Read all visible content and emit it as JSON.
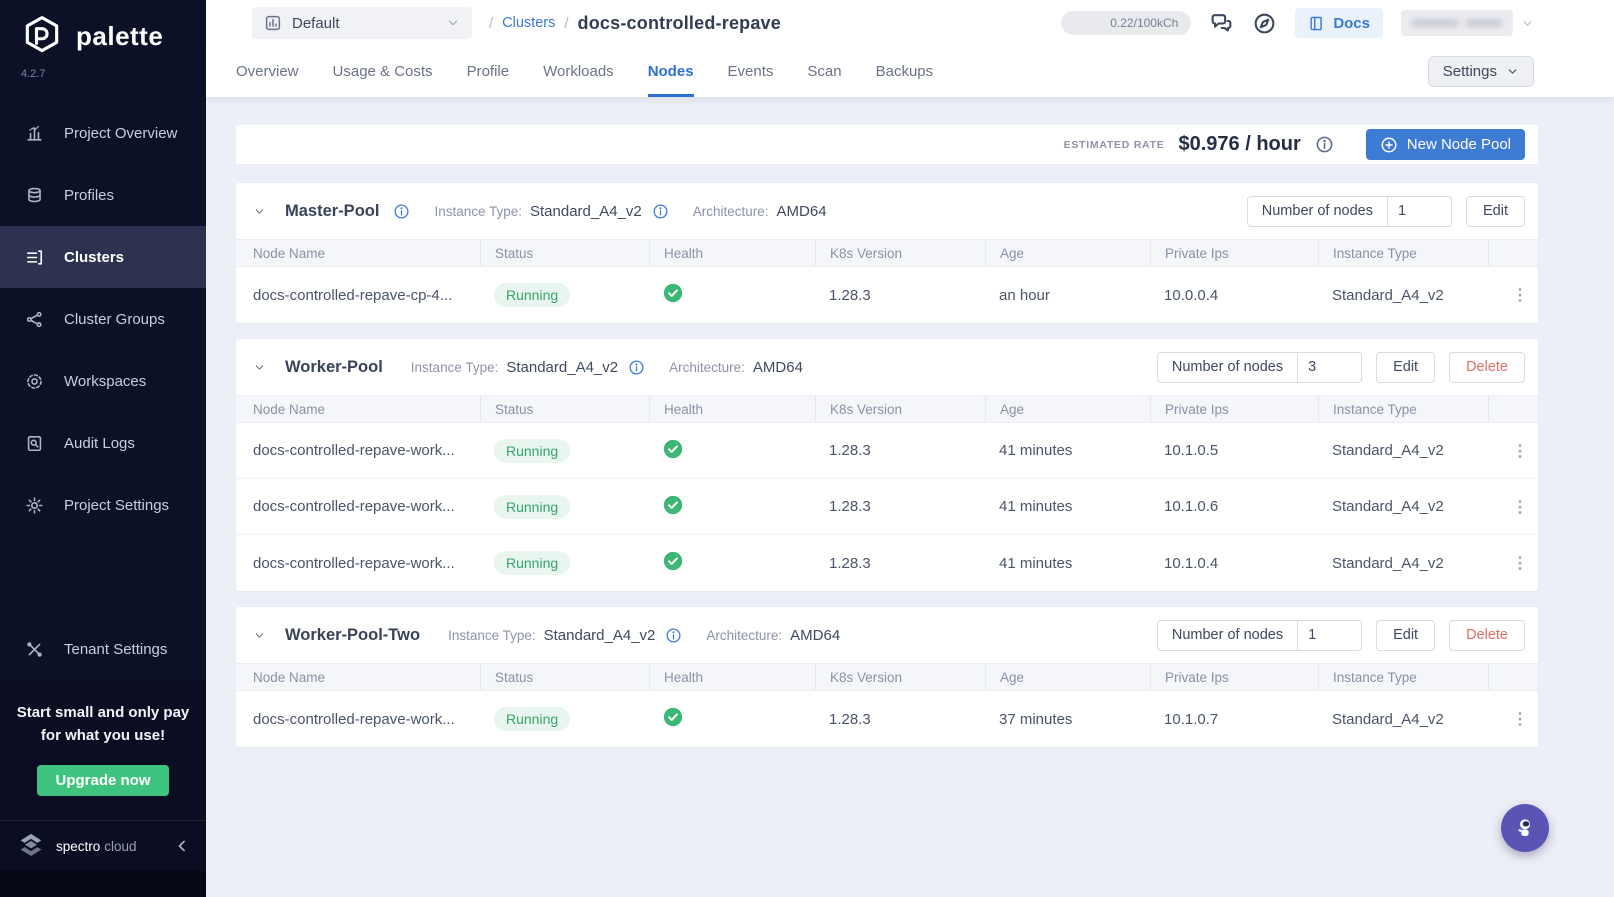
{
  "brand": {
    "name": "palette",
    "version": "4.2.7",
    "footer_name": "spectro",
    "footer_name_lite": "cloud"
  },
  "sidebar": {
    "items": [
      {
        "id": "project-overview",
        "label": "Project Overview",
        "icon": "bar-chart-icon",
        "active": false
      },
      {
        "id": "profiles",
        "label": "Profiles",
        "icon": "stack-icon",
        "active": false
      },
      {
        "id": "clusters",
        "label": "Clusters",
        "icon": "server-list-icon",
        "active": true
      },
      {
        "id": "cluster-groups",
        "label": "Cluster Groups",
        "icon": "network-icon",
        "active": false
      },
      {
        "id": "workspaces",
        "label": "Workspaces",
        "icon": "orbit-icon",
        "active": false
      },
      {
        "id": "audit-logs",
        "label": "Audit Logs",
        "icon": "audit-doc-icon",
        "active": false
      },
      {
        "id": "project-settings",
        "label": "Project Settings",
        "icon": "gear-icon",
        "active": false
      }
    ],
    "tenant": {
      "id": "tenant-settings",
      "label": "Tenant Settings",
      "icon": "tools-icon"
    },
    "promo": {
      "line1": "Start small and only pay",
      "line2": "for what you use!",
      "cta": "Upgrade now"
    }
  },
  "header": {
    "project_selector": "Default",
    "breadcrumb": {
      "separator": "/",
      "link": "Clusters",
      "current": "docs-controlled-repave"
    },
    "usage_badge": "0.22/100kCh",
    "docs_button": "Docs"
  },
  "tabs": {
    "items": [
      "Overview",
      "Usage & Costs",
      "Profile",
      "Workloads",
      "Nodes",
      "Events",
      "Scan",
      "Backups"
    ],
    "active": "Nodes",
    "settings_button": "Settings"
  },
  "rate_bar": {
    "label": "ESTIMATED RATE",
    "value": "$0.976 / hour",
    "new_node_pool_button": "New Node Pool"
  },
  "labels": {
    "instance_type": "Instance Type:",
    "architecture": "Architecture:",
    "number_of_nodes": "Number of nodes",
    "edit": "Edit",
    "delete": "Delete"
  },
  "table_columns": [
    "Node Name",
    "Status",
    "Health",
    "K8s Version",
    "Age",
    "Private Ips",
    "Instance Type"
  ],
  "pools": [
    {
      "name": "Master-Pool",
      "name_info": true,
      "instance_type": "Standard_A4_v2",
      "architecture": "AMD64",
      "nodes_count": "1",
      "can_delete": false,
      "rows": [
        {
          "name": "docs-controlled-repave-cp-4...",
          "status": "Running",
          "k8s_version": "1.28.3",
          "age": "an hour",
          "private_ip": "10.0.0.4",
          "instance_type": "Standard_A4_v2"
        }
      ]
    },
    {
      "name": "Worker-Pool",
      "name_info": false,
      "instance_type": "Standard_A4_v2",
      "architecture": "AMD64",
      "nodes_count": "3",
      "can_delete": true,
      "rows": [
        {
          "name": "docs-controlled-repave-work...",
          "status": "Running",
          "k8s_version": "1.28.3",
          "age": "41 minutes",
          "private_ip": "10.1.0.5",
          "instance_type": "Standard_A4_v2"
        },
        {
          "name": "docs-controlled-repave-work...",
          "status": "Running",
          "k8s_version": "1.28.3",
          "age": "41 minutes",
          "private_ip": "10.1.0.6",
          "instance_type": "Standard_A4_v2"
        },
        {
          "name": "docs-controlled-repave-work...",
          "status": "Running",
          "k8s_version": "1.28.3",
          "age": "41 minutes",
          "private_ip": "10.1.0.4",
          "instance_type": "Standard_A4_v2"
        }
      ]
    },
    {
      "name": "Worker-Pool-Two",
      "name_info": false,
      "instance_type": "Standard_A4_v2",
      "architecture": "AMD64",
      "nodes_count": "1",
      "can_delete": true,
      "rows": [
        {
          "name": "docs-controlled-repave-work...",
          "status": "Running",
          "k8s_version": "1.28.3",
          "age": "37 minutes",
          "private_ip": "10.1.0.7",
          "instance_type": "Standard_A4_v2"
        }
      ]
    }
  ],
  "colors": {
    "accent_blue": "#3e7bd3",
    "running_green": "#34a56b",
    "health_green": "#3cb874",
    "delete_red": "#dd6f66",
    "upgrade_green": "#3fc47f",
    "fab_purple": "#5a54b5",
    "sidebar_navy": "#0d1128"
  }
}
